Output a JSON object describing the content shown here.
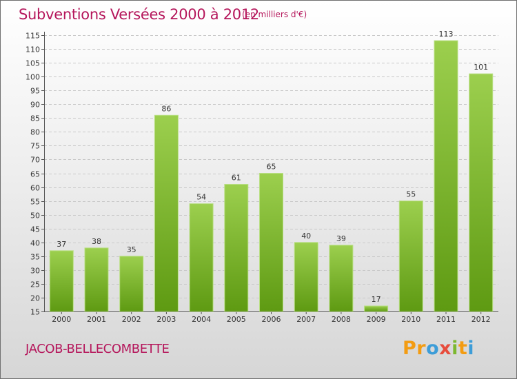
{
  "header": {
    "title": "Subventions Versées 2000 à 2012",
    "subtitle": "(en milliers d'€)"
  },
  "footer": {
    "commune": "JACOB-BELLECOMBETTE",
    "logo": "Proxiti"
  },
  "colors": {
    "accent": "#b5165b",
    "bar_light": "#9ccf4e",
    "bar_dark": "#5e9a12"
  },
  "chart_data": {
    "type": "bar",
    "title": "Subventions Versées 2000 à 2012",
    "subtitle": "(en milliers d'€)",
    "xlabel": "",
    "ylabel": "",
    "categories": [
      "2000",
      "2001",
      "2002",
      "2003",
      "2004",
      "2005",
      "2006",
      "2007",
      "2008",
      "2009",
      "2010",
      "2011",
      "2012"
    ],
    "values": [
      37,
      38,
      35,
      86,
      54,
      61,
      65,
      40,
      39,
      17,
      55,
      113,
      101
    ],
    "ylim": [
      15,
      115
    ],
    "yticks": [
      15,
      20,
      25,
      30,
      35,
      40,
      45,
      50,
      55,
      60,
      65,
      70,
      75,
      80,
      85,
      90,
      95,
      100,
      105,
      110,
      115
    ],
    "grid": true,
    "data_labels": true
  }
}
